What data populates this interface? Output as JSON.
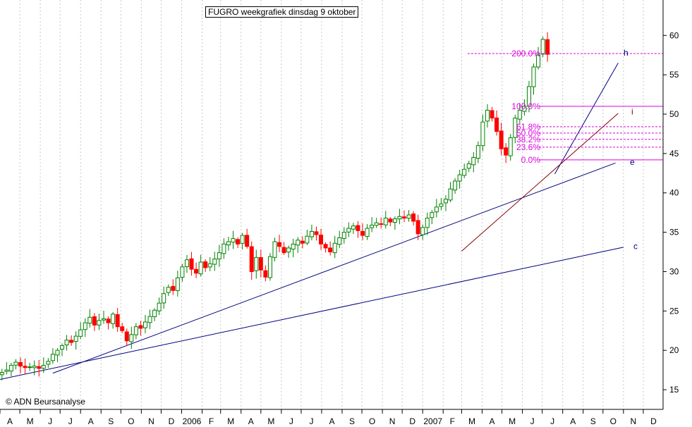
{
  "title": "FUGRO  weekgrafiek  dinsdag 9 oktober",
  "credit": "© ADN Beursanalyse",
  "colors": {
    "up": "#008000",
    "down": "#ff0000",
    "trend": "#000080",
    "fib": "#dd00dd",
    "grid": "#c8c8c8"
  },
  "chart_data": {
    "type": "candlestick",
    "title": "FUGRO  weekgrafiek  dinsdag 9 oktober",
    "ylim": [
      12.5,
      64.5
    ],
    "yticks": [
      15,
      20,
      25,
      30,
      35,
      40,
      45,
      50,
      55,
      60
    ],
    "grid": true,
    "x_start": "2005-04-01",
    "x_end": "2007-12-31",
    "months": [
      "A",
      "M",
      "J",
      "J",
      "A",
      "S",
      "O",
      "N",
      "D",
      "2006",
      "F",
      "M",
      "A",
      "M",
      "J",
      "J",
      "A",
      "S",
      "O",
      "N",
      "D",
      "2007",
      "F",
      "M",
      "A",
      "M",
      "J",
      "J",
      "A",
      "S",
      "O",
      "N",
      "D"
    ],
    "closes": [
      17.2,
      17.5,
      18.1,
      18.5,
      18.0,
      17.8,
      17.9,
      18.0,
      17.7,
      18.1,
      18.6,
      19.5,
      20.0,
      20.6,
      21.3,
      21.0,
      21.8,
      22.6,
      23.5,
      24.2,
      23.2,
      23.8,
      24.0,
      23.5,
      24.6,
      23.0,
      22.5,
      21.2,
      22.0,
      23.0,
      22.8,
      23.6,
      24.3,
      25.1,
      26.0,
      27.2,
      28.0,
      27.6,
      29.2,
      30.6,
      31.5,
      30.3,
      29.8,
      31.2,
      30.5,
      31.0,
      31.6,
      32.4,
      33.5,
      33.8,
      34.2,
      33.5,
      34.6,
      33.2,
      30.0,
      31.8,
      30.2,
      29.3,
      31.9,
      33.8,
      33.2,
      32.4,
      33.0,
      33.5,
      34.0,
      33.6,
      34.5,
      35.1,
      34.7,
      33.5,
      33.0,
      32.5,
      33.6,
      34.3,
      35.0,
      35.5,
      35.8,
      35.2,
      34.6,
      35.5,
      35.9,
      36.2,
      36.0,
      36.8,
      36.3,
      36.7,
      37.0,
      36.8,
      37.2,
      36.4,
      34.8,
      35.6,
      36.8,
      37.5,
      38.2,
      38.6,
      39.2,
      40.5,
      41.5,
      42.3,
      43.0,
      43.7,
      44.5,
      46.0,
      49.0,
      50.5,
      49.5,
      47.8,
      45.6,
      44.8,
      47.0,
      49.5,
      50.5,
      51.0,
      53.5,
      56.0,
      57.5,
      59.5,
      57.6
    ]
  },
  "annotations": {
    "fib_levels": [
      {
        "label": "200.0%",
        "value": 57.7
      },
      {
        "label": "100.0%",
        "value": 51.0
      },
      {
        "label": "61.8%",
        "value": 48.4
      },
      {
        "label": "50.0%",
        "value": 47.6
      },
      {
        "label": "38.2%",
        "value": 46.8
      },
      {
        "label": "23.6%",
        "value": 45.8
      },
      {
        "label": "0.0%",
        "value": 44.2
      }
    ],
    "trend_labels": [
      {
        "label": "h",
        "value": 57.8
      },
      {
        "label": "i",
        "value": 50.3
      },
      {
        "label": "e",
        "value": 43.9
      },
      {
        "label": "c",
        "value": 33.2
      }
    ]
  }
}
